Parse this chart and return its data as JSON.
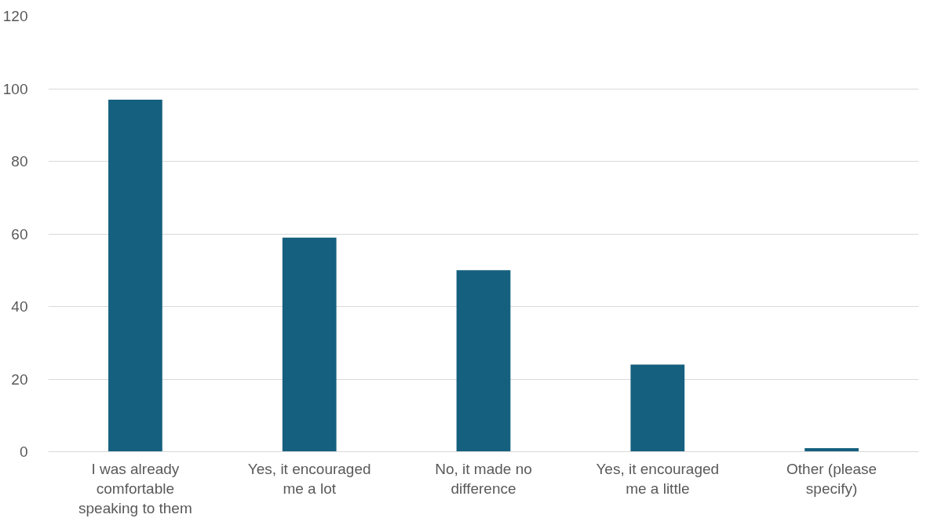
{
  "chart_data": {
    "type": "bar",
    "categories": [
      "I was already comfortable speaking to them",
      "Yes, it encouraged me a lot",
      "No, it made no difference",
      "Yes, it encouraged me a little",
      "Other (please specify)"
    ],
    "values": [
      97,
      59,
      50,
      24,
      1
    ],
    "color": "#16607f",
    "ylim": [
      0,
      120
    ],
    "yticks": [
      0,
      20,
      40,
      60,
      80,
      100,
      120
    ],
    "grid": "y"
  }
}
